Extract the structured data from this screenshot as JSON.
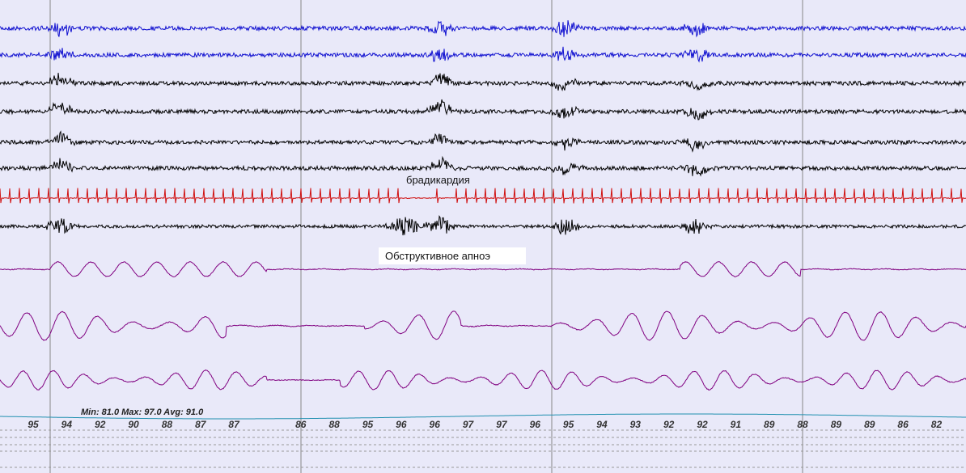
{
  "annotations": {
    "bradycardia": "брадикардия",
    "apnea": "Обструктивное апноэ"
  },
  "spo2": {
    "stats": "Min: 81.0 Max: 97.0 Avg: 91.0",
    "readings": [
      "95",
      "94",
      "92",
      "90",
      "88",
      "87",
      "87",
      "86",
      "88",
      "95",
      "96",
      "96",
      "97",
      "97",
      "96",
      "95",
      "94",
      "93",
      "92",
      "92",
      "91",
      "89",
      "88",
      "89",
      "89",
      "86",
      "82"
    ]
  }
}
